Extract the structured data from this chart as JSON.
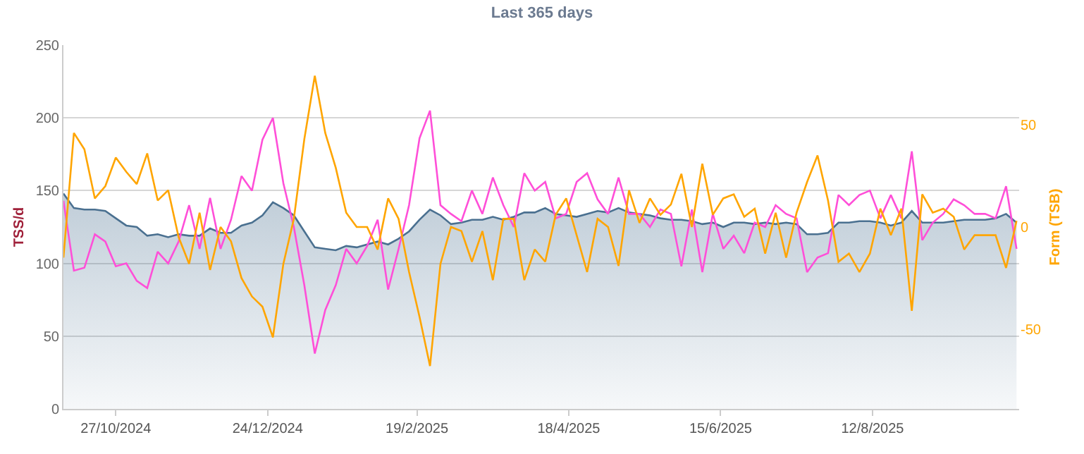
{
  "chart_data": {
    "type": "line",
    "title": "Last 365 days",
    "ylabel": "TSS/d",
    "y2label": "Form (TSB)",
    "x": [
      "2024-10-07",
      "2024-10-11",
      "2024-10-15",
      "2024-10-19",
      "2024-10-23",
      "2024-10-27",
      "2024-10-31",
      "2024-11-04",
      "2024-11-08",
      "2024-11-12",
      "2024-11-16",
      "2024-11-20",
      "2024-11-24",
      "2024-11-28",
      "2024-12-02",
      "2024-12-06",
      "2024-12-10",
      "2024-12-14",
      "2024-12-18",
      "2024-12-22",
      "2024-12-26",
      "2024-12-30",
      "2025-01-03",
      "2025-01-07",
      "2025-01-11",
      "2025-01-15",
      "2025-01-19",
      "2025-01-23",
      "2025-01-27",
      "2025-01-31",
      "2025-02-04",
      "2025-02-08",
      "2025-02-12",
      "2025-02-16",
      "2025-02-20",
      "2025-02-24",
      "2025-02-28",
      "2025-03-04",
      "2025-03-08",
      "2025-03-12",
      "2025-03-16",
      "2025-03-20",
      "2025-03-24",
      "2025-03-28",
      "2025-04-01",
      "2025-04-05",
      "2025-04-09",
      "2025-04-13",
      "2025-04-17",
      "2025-04-21",
      "2025-04-25",
      "2025-04-29",
      "2025-05-03",
      "2025-05-07",
      "2025-05-11",
      "2025-05-15",
      "2025-05-19",
      "2025-05-23",
      "2025-05-27",
      "2025-05-31",
      "2025-06-04",
      "2025-06-08",
      "2025-06-12",
      "2025-06-16",
      "2025-06-20",
      "2025-06-24",
      "2025-06-28",
      "2025-07-02",
      "2025-07-06",
      "2025-07-10",
      "2025-07-14",
      "2025-07-18",
      "2025-07-22",
      "2025-07-26",
      "2025-07-30",
      "2025-08-03",
      "2025-08-07",
      "2025-08-11",
      "2025-08-15",
      "2025-08-19",
      "2025-08-23",
      "2025-08-27",
      "2025-08-31",
      "2025-09-04",
      "2025-09-08",
      "2025-09-12",
      "2025-09-16",
      "2025-09-20",
      "2025-09-24",
      "2025-09-28",
      "2025-10-02",
      "2025-10-06"
    ],
    "series": [
      {
        "type": "area",
        "color": "#4a7090",
        "values": [
          148,
          138,
          137,
          137,
          136,
          131,
          126,
          125,
          119,
          120,
          118,
          120,
          119,
          119,
          124,
          121,
          121,
          126,
          128,
          133,
          142,
          138,
          133,
          122,
          111,
          110,
          109,
          112,
          111,
          113,
          115,
          113,
          117,
          122,
          130,
          137,
          133,
          127,
          128,
          130,
          130,
          132,
          130,
          132,
          135,
          135,
          138,
          134,
          133,
          132,
          134,
          136,
          135,
          138,
          135,
          134,
          133,
          131,
          130,
          130,
          129,
          127,
          128,
          125,
          128,
          128,
          127,
          128,
          127,
          128,
          127,
          120,
          120,
          121,
          128,
          128,
          129,
          129,
          128,
          126,
          128,
          136,
          128,
          128,
          128,
          129,
          130,
          130,
          130,
          131,
          134,
          128
        ]
      },
      {
        "type": "line",
        "color": "#ff4fd8",
        "values": [
          143,
          95,
          97,
          120,
          115,
          98,
          100,
          88,
          83,
          108,
          100,
          115,
          140,
          110,
          145,
          110,
          130,
          160,
          150,
          185,
          200,
          155,
          125,
          85,
          38,
          68,
          85,
          110,
          100,
          112,
          130,
          82,
          110,
          140,
          186,
          205,
          140,
          134,
          129,
          150,
          134,
          159,
          140,
          125,
          162,
          150,
          156,
          131,
          134,
          156,
          162,
          144,
          134,
          159,
          134,
          134,
          125,
          137,
          134,
          98,
          137,
          94,
          134,
          110,
          119,
          107,
          128,
          125,
          140,
          134,
          131,
          94,
          104,
          107,
          147,
          140,
          147,
          150,
          131,
          147,
          131,
          177,
          116,
          128,
          134,
          144,
          140,
          134,
          134,
          131,
          153,
          110
        ]
      },
      {
        "type": "line",
        "axis": "y2",
        "color": "#ffa500",
        "values": [
          -15,
          46,
          38,
          14,
          20,
          34,
          27,
          21,
          36,
          13,
          18,
          -5,
          -18,
          7,
          -21,
          0,
          -7,
          -25,
          -34,
          -39,
          -54,
          -18,
          4,
          43,
          74,
          46,
          29,
          7,
          0,
          0,
          -11,
          14,
          4,
          -22,
          -44,
          -68,
          -18,
          0,
          -2,
          -17,
          -2,
          -26,
          4,
          4,
          -26,
          -11,
          -17,
          6,
          14,
          -4,
          -22,
          4,
          0,
          -19,
          18,
          2,
          14,
          6,
          11,
          26,
          0,
          31,
          6,
          14,
          16,
          5,
          9,
          -13,
          7,
          -15,
          7,
          22,
          35,
          13,
          -17,
          -13,
          -22,
          -13,
          9,
          -4,
          9,
          -41,
          16,
          7,
          9,
          5,
          -11,
          -4,
          -4,
          -4,
          -20,
          3
        ]
      }
    ],
    "xlim": [
      "2024-10-07",
      "2025-10-07"
    ],
    "xticks": [
      {
        "value": "2024-10-27",
        "label": "27/10/2024"
      },
      {
        "value": "2024-12-24",
        "label": "24/12/2024"
      },
      {
        "value": "2025-02-19",
        "label": "19/2/2025"
      },
      {
        "value": "2025-04-18",
        "label": "18/4/2025"
      },
      {
        "value": "2025-06-15",
        "label": "15/6/2025"
      },
      {
        "value": "2025-08-12",
        "label": "12/8/2025"
      }
    ],
    "ylim": [
      0,
      250
    ],
    "yticks": [
      0,
      50,
      100,
      150,
      200,
      250
    ],
    "y2lim": [
      -89,
      89
    ],
    "y2ticks": [
      -50,
      0,
      50
    ],
    "grid": "y"
  }
}
